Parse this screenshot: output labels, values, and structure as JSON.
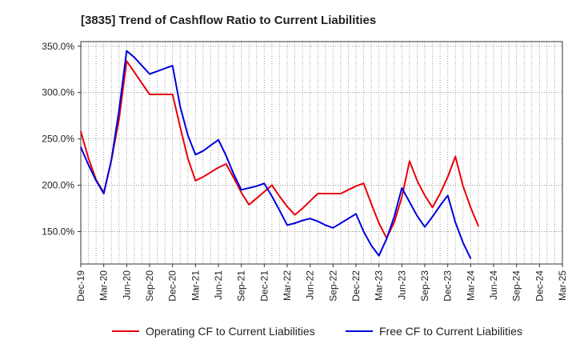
{
  "chart_data": {
    "type": "line",
    "title": "[3835]  Trend of Cashflow Ratio to Current Liabilities",
    "xlabel": "",
    "ylabel": "",
    "categories": [
      "Dec-19",
      "Mar-20",
      "Jun-20",
      "Sep-20",
      "Dec-20",
      "Mar-21",
      "Jun-21",
      "Sep-21",
      "Dec-21",
      "Mar-22",
      "Jun-22",
      "Sep-22",
      "Dec-22",
      "Mar-23",
      "Jun-23",
      "Sep-23",
      "Dec-23",
      "Mar-24",
      "Jun-24",
      "Sep-24",
      "Dec-24",
      "Mar-25"
    ],
    "x": [
      0,
      1,
      2,
      3,
      4,
      5,
      6,
      7,
      8,
      9,
      10,
      11,
      12,
      13,
      14,
      15,
      16,
      17,
      18,
      19,
      20,
      21,
      22,
      23,
      24,
      25,
      26,
      27,
      28,
      29,
      30,
      31,
      32,
      33,
      34,
      35,
      36,
      37,
      38,
      39,
      40,
      41,
      42,
      43,
      44,
      45,
      46,
      47,
      48,
      49,
      50,
      51,
      52,
      53,
      54,
      55,
      56,
      57,
      58,
      59,
      60,
      61,
      62,
      63
    ],
    "ylim": [
      115,
      355
    ],
    "yticks": [
      150,
      200,
      250,
      300,
      350
    ],
    "ytick_labels": [
      "150.0%",
      "200.0%",
      "250.0%",
      "300.0%",
      "350.0%"
    ],
    "grid": true,
    "legend_position": "bottom",
    "series": [
      {
        "name": "Operating CF to Current Liabilities",
        "color": "#e8000b",
        "points": [
          [
            0,
            258
          ],
          [
            1,
            229
          ],
          [
            2,
            206
          ],
          [
            3,
            192
          ],
          [
            4,
            227
          ],
          [
            5,
            271
          ],
          [
            6,
            334
          ],
          [
            7,
            322
          ],
          [
            8,
            310
          ],
          [
            9,
            298
          ],
          [
            10,
            298
          ],
          [
            11,
            298
          ],
          [
            12,
            298
          ],
          [
            13,
            263
          ],
          [
            14,
            229
          ],
          [
            15,
            205
          ],
          [
            16,
            209
          ],
          [
            17,
            214
          ],
          [
            18,
            219
          ],
          [
            19,
            223
          ],
          [
            20,
            208
          ],
          [
            21,
            192
          ],
          [
            22,
            179
          ],
          [
            23,
            186
          ],
          [
            24,
            193
          ],
          [
            25,
            200
          ],
          [
            26,
            188
          ],
          [
            27,
            177
          ],
          [
            28,
            168
          ],
          [
            29,
            175
          ],
          [
            30,
            183
          ],
          [
            31,
            191
          ],
          [
            32,
            191
          ],
          [
            33,
            191
          ],
          [
            34,
            191
          ],
          [
            35,
            195
          ],
          [
            36,
            199
          ],
          [
            37,
            202
          ],
          [
            38,
            180
          ],
          [
            39,
            159
          ],
          [
            40,
            143
          ],
          [
            41,
            160
          ],
          [
            42,
            187
          ],
          [
            43,
            226
          ],
          [
            44,
            205
          ],
          [
            45,
            189
          ],
          [
            46,
            176
          ],
          [
            47,
            191
          ],
          [
            48,
            209
          ],
          [
            49,
            231
          ],
          [
            50,
            199
          ],
          [
            51,
            176
          ],
          [
            52,
            156
          ]
        ]
      },
      {
        "name": "Free CF to Current Liabilities",
        "color": "#0000e0",
        "points": [
          [
            0,
            241
          ],
          [
            1,
            222
          ],
          [
            2,
            205
          ],
          [
            3,
            191
          ],
          [
            4,
            227
          ],
          [
            5,
            281
          ],
          [
            6,
            345
          ],
          [
            7,
            338
          ],
          [
            8,
            329
          ],
          [
            9,
            320
          ],
          [
            10,
            323
          ],
          [
            11,
            326
          ],
          [
            12,
            329
          ],
          [
            13,
            285
          ],
          [
            14,
            254
          ],
          [
            15,
            233
          ],
          [
            16,
            237
          ],
          [
            17,
            243
          ],
          [
            18,
            249
          ],
          [
            19,
            232
          ],
          [
            20,
            212
          ],
          [
            21,
            195
          ],
          [
            22,
            197
          ],
          [
            23,
            199
          ],
          [
            24,
            202
          ],
          [
            25,
            188
          ],
          [
            26,
            173
          ],
          [
            27,
            157
          ],
          [
            28,
            159
          ],
          [
            29,
            162
          ],
          [
            30,
            164
          ],
          [
            31,
            161
          ],
          [
            32,
            157
          ],
          [
            33,
            154
          ],
          [
            34,
            159
          ],
          [
            35,
            164
          ],
          [
            36,
            169
          ],
          [
            37,
            150
          ],
          [
            38,
            135
          ],
          [
            39,
            124
          ],
          [
            40,
            142
          ],
          [
            41,
            166
          ],
          [
            42,
            197
          ],
          [
            43,
            182
          ],
          [
            44,
            167
          ],
          [
            45,
            155
          ],
          [
            46,
            166
          ],
          [
            47,
            178
          ],
          [
            48,
            189
          ],
          [
            49,
            160
          ],
          [
            50,
            138
          ],
          [
            51,
            121
          ]
        ]
      }
    ]
  }
}
